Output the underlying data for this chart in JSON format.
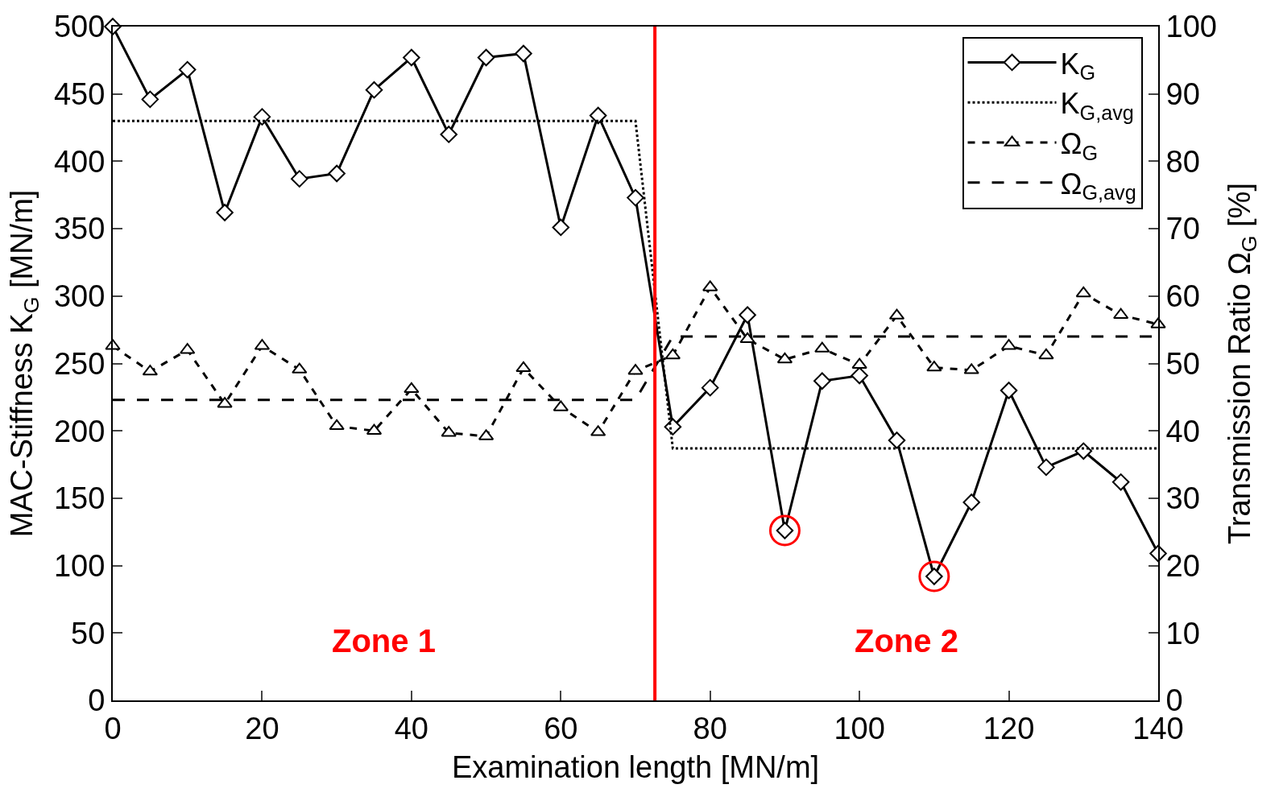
{
  "chart_data": {
    "type": "line",
    "xlabel": "Examination length [MN/m]",
    "ylabel": "MAC-Stiffness K$_{G}$ [MN/m]",
    "y2label": "Transmission Ratio Ω$_{G}$ [%]",
    "x": [
      0,
      5,
      10,
      15,
      20,
      25,
      30,
      35,
      40,
      45,
      50,
      55,
      60,
      65,
      70,
      75,
      80,
      85,
      90,
      95,
      100,
      105,
      110,
      115,
      120,
      125,
      130,
      135,
      140
    ],
    "series": [
      {
        "name": "K$_{G}$",
        "color": "#000000",
        "marker": "diamond",
        "line_style": "solid",
        "values": [
          500,
          446,
          468,
          362,
          433,
          387,
          391,
          453,
          477,
          420,
          477,
          480,
          351,
          434,
          373,
          203,
          232,
          286,
          126,
          237,
          241,
          193,
          92,
          147,
          230,
          173,
          185,
          162,
          109
        ]
      },
      {
        "name": "K$_{G,avg}$",
        "color": "#000000",
        "marker": "none",
        "line_style": "dotted",
        "x": [
          0,
          70,
          75,
          140
        ],
        "values": [
          430,
          430,
          187,
          187
        ]
      },
      {
        "name": "Ω$_{G}$",
        "color": "#000000",
        "marker": "triangle",
        "line_style": "dashed",
        "axis": "y2",
        "values": [
          52.6,
          48.8,
          52,
          44,
          52.6,
          49.1,
          40.7,
          40,
          46.2,
          39.7,
          39.2,
          49.3,
          43.5,
          39.8,
          48.9,
          51.2,
          61.3,
          53.6,
          50.6,
          52.2,
          49.8,
          57.1,
          49.4,
          49,
          52.6,
          51.2,
          60.4,
          57.2,
          55.8
        ]
      },
      {
        "name": "Ω$_{G,avg}$",
        "color": "#000000",
        "marker": "none",
        "line_style": "longdash",
        "axis": "y2",
        "x": [
          0,
          70,
          75,
          140
        ],
        "values": [
          44.6,
          44.6,
          54,
          54
        ]
      },
      {
        "type": "scatter",
        "color": "#ff0000",
        "marker": "circle-open",
        "x": [
          90,
          110
        ],
        "values": [
          126,
          92
        ]
      }
    ],
    "ref_lines": [
      {
        "axis": "x",
        "value": 72.6,
        "color": "#ff0000"
      }
    ],
    "annotations": [
      "Zone 1",
      "Zone 2"
    ],
    "xlim": [
      0,
      140
    ],
    "xticks": [
      0,
      20,
      40,
      60,
      80,
      100,
      120,
      140
    ],
    "ylim": [
      0,
      500
    ],
    "yticks": [
      0,
      50,
      100,
      150,
      200,
      250,
      300,
      350,
      400,
      450,
      500
    ],
    "y2lim": [
      0,
      100
    ],
    "y2ticks": [
      0,
      10,
      20,
      30,
      40,
      50,
      60,
      70,
      80,
      90,
      100
    ],
    "legend": "top right"
  }
}
